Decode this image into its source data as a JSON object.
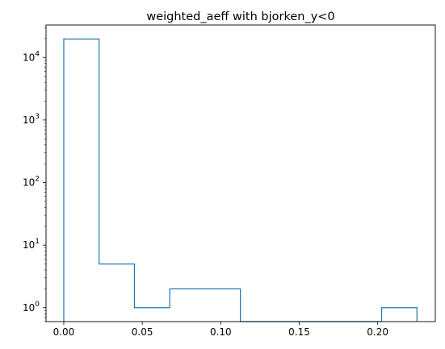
{
  "chart_data": {
    "type": "histogram",
    "title": "weighted_aeff with bjorken_y<0",
    "xlabel": "",
    "ylabel": "",
    "y_scale": "log",
    "xlim": [
      -0.0113,
      0.2367
    ],
    "ylim": [
      0.6,
      33000
    ],
    "bin_edges": [
      0.0,
      0.0225,
      0.045,
      0.0675,
      0.09,
      0.1125,
      0.135,
      0.1575,
      0.18,
      0.2025,
      0.225
    ],
    "counts": [
      19700,
      5,
      1,
      2,
      2,
      0,
      0,
      0,
      0,
      1
    ],
    "x_ticks": [
      {
        "value": 0.0,
        "label": "0.00"
      },
      {
        "value": 0.05,
        "label": "0.05"
      },
      {
        "value": 0.1,
        "label": "0.10"
      },
      {
        "value": 0.15,
        "label": "0.15"
      },
      {
        "value": 0.2,
        "label": "0.20"
      }
    ],
    "y_ticks": [
      {
        "value": 1,
        "base": "10",
        "exp": "0"
      },
      {
        "value": 10,
        "base": "10",
        "exp": "1"
      },
      {
        "value": 100,
        "base": "10",
        "exp": "2"
      },
      {
        "value": 1000,
        "base": "10",
        "exp": "3"
      },
      {
        "value": 10000,
        "base": "10",
        "exp": "4"
      }
    ],
    "line_color": "#1f77b4",
    "fill": "none",
    "grid": false,
    "legend": false
  }
}
